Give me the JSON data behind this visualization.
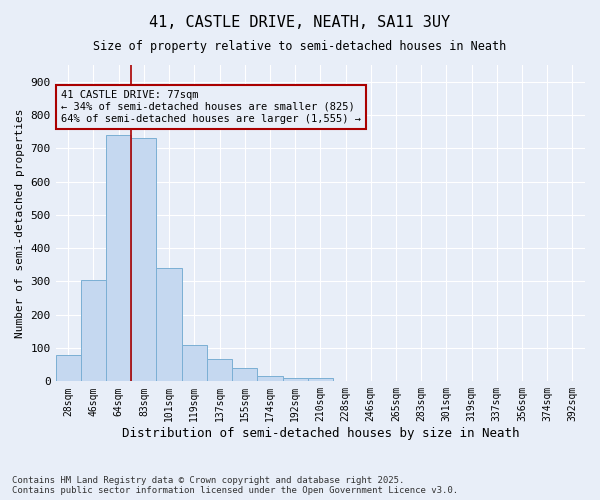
{
  "title": "41, CASTLE DRIVE, NEATH, SA11 3UY",
  "subtitle": "Size of property relative to semi-detached houses in Neath",
  "xlabel": "Distribution of semi-detached houses by size in Neath",
  "ylabel": "Number of semi-detached properties",
  "property_label": "41 CASTLE DRIVE: 77sqm",
  "pct_smaller": 34,
  "count_smaller": 825,
  "pct_larger": 64,
  "count_larger": 1555,
  "bar_color": "#c5d8f0",
  "bar_edge_color": "#7bafd4",
  "vline_color": "#aa0000",
  "annotation_box_color": "#aa0000",
  "background_color": "#e8eef8",
  "grid_color": "#ffffff",
  "categories": [
    "28sqm",
    "46sqm",
    "64sqm",
    "83sqm",
    "101sqm",
    "119sqm",
    "137sqm",
    "155sqm",
    "174sqm",
    "192sqm",
    "210sqm",
    "228sqm",
    "246sqm",
    "265sqm",
    "283sqm",
    "301sqm",
    "319sqm",
    "337sqm",
    "356sqm",
    "374sqm",
    "392sqm"
  ],
  "values": [
    80,
    305,
    740,
    730,
    340,
    108,
    68,
    40,
    15,
    10,
    10,
    0,
    0,
    0,
    0,
    0,
    0,
    0,
    0,
    0,
    0
  ],
  "ylim": [
    0,
    950
  ],
  "yticks": [
    0,
    100,
    200,
    300,
    400,
    500,
    600,
    700,
    800,
    900
  ],
  "vline_x_index": 2.5,
  "footer_line1": "Contains HM Land Registry data © Crown copyright and database right 2025.",
  "footer_line2": "Contains public sector information licensed under the Open Government Licence v3.0."
}
